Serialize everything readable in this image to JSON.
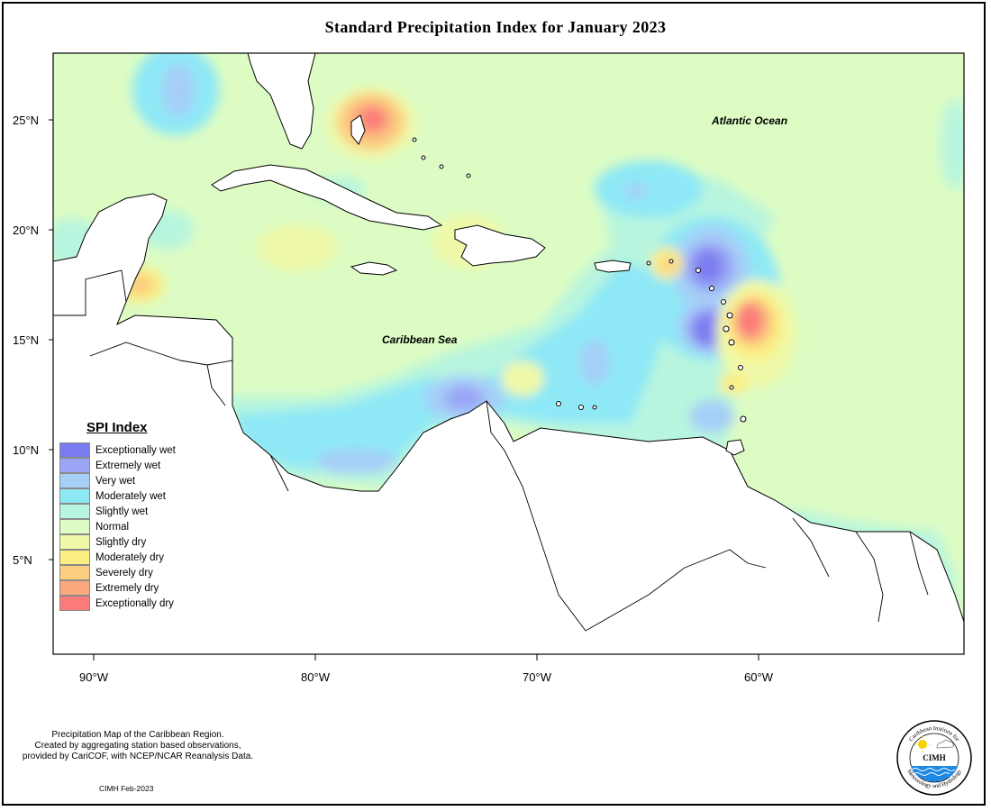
{
  "title": "Standard Precipitation Index for January 2023",
  "axes": {
    "y_labels": [
      "25°N",
      "20°N",
      "15°N",
      "10°N",
      "5°N"
    ],
    "x_labels": [
      "90°W",
      "80°W",
      "70°W",
      "60°W"
    ]
  },
  "labels": {
    "atlantic": "Atlantic Ocean",
    "caribbean": "Caribbean Sea"
  },
  "legend": {
    "title": "SPI Index",
    "items": [
      {
        "label": "Exceptionally wet",
        "color": "#7b7bf0"
      },
      {
        "label": "Extremely wet",
        "color": "#9aa6f5"
      },
      {
        "label": "Very wet",
        "color": "#a6cff8"
      },
      {
        "label": "Moderately wet",
        "color": "#8ee8f6"
      },
      {
        "label": "Slightly wet",
        "color": "#b8f5de"
      },
      {
        "label": "Normal",
        "color": "#dcfcc4"
      },
      {
        "label": "Slightly dry",
        "color": "#f0f9a8"
      },
      {
        "label": "Moderately dry",
        "color": "#fbef82"
      },
      {
        "label": "Severely dry",
        "color": "#fbce80"
      },
      {
        "label": "Extremely dry",
        "color": "#fba87c"
      },
      {
        "label": "Exceptionally dry",
        "color": "#fb7a7a"
      }
    ]
  },
  "footer": {
    "line1": "Precipitation Map of the Caribbean Region.",
    "line2": "Created by aggregating station based observations,",
    "line3": "provided by CariCOF, with NCEP/NCAR Reanalysis Data.",
    "credit": "CIMH Feb-2023"
  },
  "logo": {
    "text": "CIMH",
    "ring_top": "Caribbean Institute for",
    "ring_bottom": "Meteorology and Hydrology"
  }
}
